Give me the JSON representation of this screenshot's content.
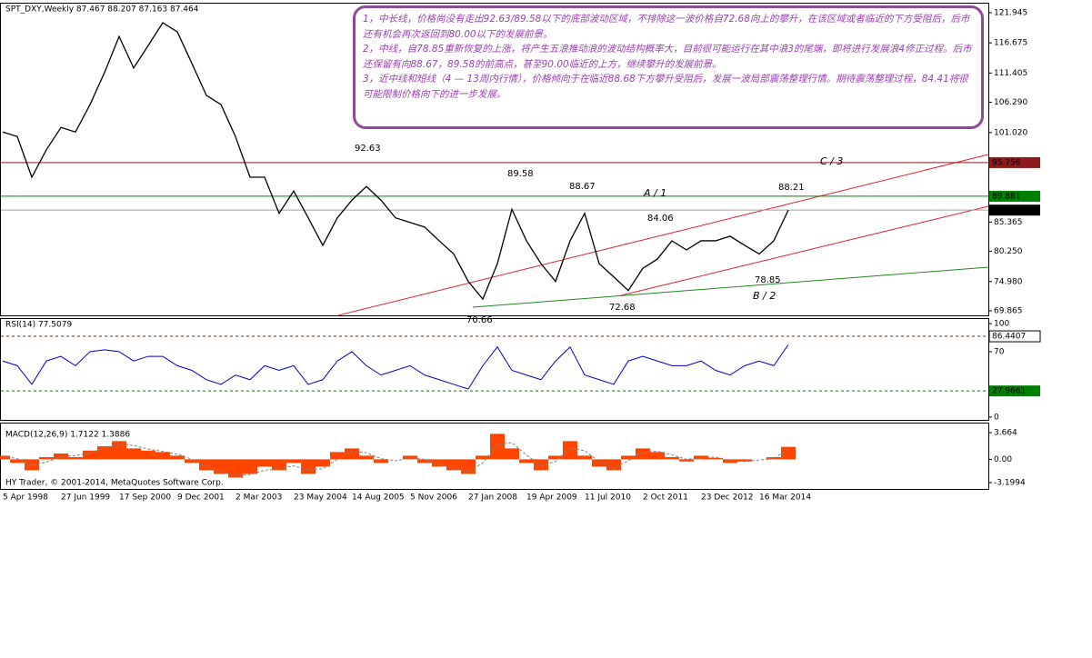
{
  "chart_data": [
    {
      "type": "line",
      "title": "SPT_DXY,Weekly 87.467 88.207 87.163 87.464",
      "categories": [
        "5 Apr 1998",
        null,
        null,
        null,
        "27 Jun 1999",
        null,
        null,
        null,
        "17 Sep 2000",
        null,
        null,
        null,
        "9 Dec 2001",
        null,
        null,
        null,
        "2 Mar 2003",
        null,
        null,
        null,
        "23 May 2004",
        null,
        null,
        null,
        "14 Aug 2005",
        null,
        null,
        null,
        "5 Nov 2006",
        null,
        null,
        null,
        "27 Jan 2008",
        null,
        null,
        null,
        "19 Apr 2009",
        null,
        null,
        null,
        "11 Jul 2010",
        null,
        null,
        null,
        "2 Oct 2011",
        null,
        null,
        null,
        "23 Dec 2012",
        null,
        null,
        null,
        "16 Mar 2014",
        null,
        null
      ],
      "values": [
        101.1,
        100.3,
        93.2,
        98.0,
        101.9,
        101.1,
        105.9,
        111.5,
        117.8,
        112.3,
        116.2,
        120.2,
        118.6,
        113.1,
        107.5,
        105.9,
        100.3,
        93.2,
        93.2,
        86.9,
        90.8,
        86.1,
        81.3,
        86.1,
        89.2,
        91.6,
        89.2,
        86.1,
        85.3,
        84.5,
        82.1,
        79.8,
        75.0,
        71.9,
        78.1,
        87.6,
        82.1,
        78.1,
        75.0,
        82.1,
        86.9,
        78.1,
        75.8,
        73.4,
        77.3,
        78.9,
        82.1,
        80.5,
        82.1,
        82.1,
        82.9,
        81.3,
        79.8,
        82.1,
        87.464
      ],
      "color": "#000000",
      "ylim": [
        69.07,
        123.53
      ],
      "yticks": [
        121.945,
        116.675,
        111.405,
        {
          "value": 106.29,
          "label": "106.290"
        },
        {
          "value": 101.02,
          "label": "101.020"
        },
        85.365,
        {
          "value": 80.25,
          "label": "80.250"
        },
        {
          "value": 74.98,
          "label": "74.980"
        },
        69.865
      ],
      "hlines": [
        {
          "value": 95.756,
          "color": "#8b1a1a"
        },
        {
          "value": 89.881,
          "color": "#008000"
        },
        {
          "value": 87.464,
          "color": "#a0a0a0"
        }
      ],
      "annotations": [
        {
          "text": "92.63",
          "color": "#8b1a1a"
        },
        {
          "text": "89.58",
          "color": "#8b1a1a"
        },
        {
          "text": "88.67",
          "color": "#1a1a8b"
        },
        {
          "text": "A / 1",
          "color": "#e0202a"
        },
        {
          "text": "C / 3",
          "color": "#e0202a"
        },
        {
          "text": "88.21",
          "color": "#8b1a1a"
        },
        {
          "text": "84.06",
          "color": "#8b1a1a"
        },
        {
          "text": "78.85",
          "color": "#8b1a1a"
        },
        {
          "text": "B / 2",
          "color": "#e0202a"
        },
        {
          "text": "72.68",
          "color": "#9b3fb3"
        },
        {
          "text": "70.66",
          "color": "#2e9b4a"
        }
      ]
    },
    {
      "type": "line",
      "title": "RSI(14) 77.5079",
      "values": [
        60,
        55,
        35,
        60,
        65,
        55,
        70,
        72,
        70,
        60,
        65,
        65,
        55,
        50,
        40,
        35,
        45,
        40,
        55,
        50,
        55,
        35,
        40,
        60,
        70,
        55,
        45,
        50,
        55,
        45,
        40,
        35,
        30,
        55,
        75,
        50,
        45,
        40,
        60,
        75,
        45,
        40,
        35,
        60,
        65,
        60,
        55,
        55,
        60,
        50,
        45,
        55,
        60,
        55,
        77.5079
      ],
      "color": "#0000cd",
      "ylim": [
        -4,
        104
      ],
      "yticks": [
        100,
        70,
        0
      ],
      "hlines": [
        {
          "value": 86.4407,
          "color": "#8b1a1a"
        },
        {
          "value": 27.9661,
          "color": "#008000"
        }
      ]
    },
    {
      "type": "bar",
      "title": "MACD(12,26,9) 1.7122 1.3886",
      "caption": "HY Trader, © 2001-2014, MetaQuotes Software Corp.",
      "values": [
        0.5,
        -0.5,
        -1.5,
        0.3,
        0.8,
        0.3,
        1.2,
        1.8,
        2.5,
        1.5,
        1.2,
        1.0,
        0.5,
        -0.5,
        -1.5,
        -2.0,
        -2.5,
        -2.0,
        -1.0,
        -1.5,
        -0.5,
        -2.0,
        -1.0,
        1.0,
        1.5,
        0.5,
        -0.5,
        0.0,
        0.5,
        -0.5,
        -1.0,
        -1.5,
        -2.0,
        0.5,
        3.5,
        1.5,
        -0.5,
        -1.5,
        0.5,
        2.5,
        0.5,
        -1.0,
        -1.5,
        0.5,
        1.5,
        1.0,
        0.3,
        -0.3,
        0.5,
        0.2,
        -0.5,
        -0.3,
        0.0,
        0.3,
        1.7122
      ],
      "signal": [
        0.4,
        0.1,
        -0.8,
        -0.4,
        0.4,
        0.5,
        0.9,
        1.5,
        2.1,
        1.9,
        1.4,
        1.1,
        0.7,
        0.0,
        -0.9,
        -1.7,
        -2.2,
        -2.1,
        -1.5,
        -1.3,
        -0.9,
        -1.4,
        -1.3,
        0.0,
        1.1,
        0.9,
        0.1,
        -0.2,
        0.2,
        0.0,
        -0.7,
        -1.2,
        -1.7,
        -0.5,
        2.0,
        2.3,
        0.6,
        -0.9,
        -0.3,
        1.5,
        1.2,
        -0.3,
        -1.2,
        -0.2,
        1.0,
        1.1,
        0.6,
        0.0,
        0.2,
        0.3,
        -0.2,
        -0.3,
        -0.1,
        0.1,
        1.3886
      ],
      "color": "#ff4500",
      "ylim": [
        -4.07,
        4.79
      ],
      "yticks": [
        3.664,
        {
          "value": 0,
          "label": "0.00"
        },
        -3.1994
      ]
    }
  ],
  "note": [
    "1，中长线，价格尚没有走出92.63/89.58以下的底部波动区域，不排除这一波价格自72.68向上的攀升，在该区域或者临近的下方受阻后，后市还有机会再次返回到80.00以下的发展前景。",
    "2，中线，自78.85重新恢复的上涨，将产生五浪推动浪的波动结构概率大，目前很可能运行在其中浪3的尾端，即将进行发展浪4修正过程。后市还保留有向88.67，89.58的前高点，甚至90.00临近的上方，继续攀升的发展前景。",
    "3，近中线和短线（4 — 13周内行情），价格倾向于在临近88.68下方攀升受阻后，发展一波局部震荡整理行情。期待震荡整理过程，84.41将很可能限制价格向下的进一步发展。"
  ]
}
